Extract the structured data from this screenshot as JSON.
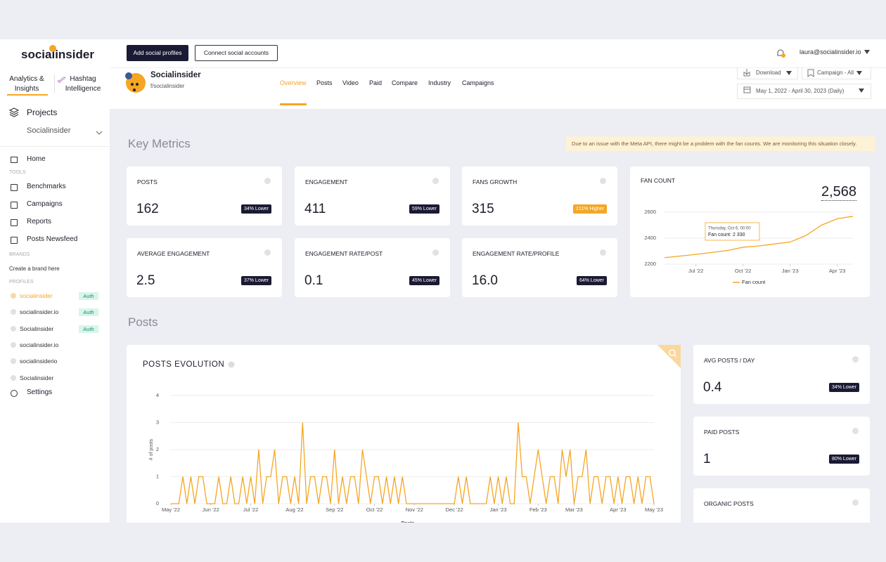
{
  "sidebar": {
    "logo": "socialinsider",
    "tabs": [
      "Analytics & Insights",
      "Hashtag Intelligence"
    ],
    "beta": "Beta",
    "projects": "Projects",
    "project": "Socialinsider",
    "home": "Home",
    "tools_label": "TOOLS",
    "tools": [
      "Benchmarks",
      "Campaigns",
      "Reports",
      "Posts Newsfeed"
    ],
    "brands_label": "BRANDS",
    "create_brand": "Create a brand here",
    "profiles_label": "PROFILES",
    "profiles": [
      {
        "name": "socialinsider",
        "auth": "Auth"
      },
      {
        "name": "socialinsider.io",
        "auth": "Auth"
      },
      {
        "name": "Socialinsider",
        "auth": "Auth"
      },
      {
        "name": "socialinsider.io"
      },
      {
        "name": "socialinsiderio"
      },
      {
        "name": "Socialinsider"
      }
    ],
    "settings": "Settings"
  },
  "topbar": {
    "buttons": [
      "Add social profiles",
      "Connect social accounts"
    ],
    "user": "laura@socialinsider.io"
  },
  "profile": {
    "name": "Socialinsider",
    "handle": "f/socialinsider",
    "tabs": [
      "Overview",
      "Posts",
      "Video",
      "Paid",
      "Compare",
      "Industry",
      "Campaigns"
    ],
    "download": "Download",
    "campaign": "Campaign - All",
    "date_range": "May 1, 2022 - April 30, 2023 (Daily)"
  },
  "key_metrics": {
    "title": "Key Metrics",
    "notice": "Due to an issue with the Meta API, there might be a problem with the fan counts. We are monitoring this situation closely.",
    "cards": [
      {
        "label": "POSTS",
        "value": "162",
        "badge": "34% Lower",
        "badge_color": "#1b1a34"
      },
      {
        "label": "ENGAGEMENT",
        "value": "411",
        "badge": "59% Lower",
        "badge_color": "#1b1a34"
      },
      {
        "label": "FANS GROWTH",
        "value": "315",
        "badge": "211% Higher",
        "badge_color": "#f5a623"
      },
      {
        "label": "AVERAGE ENGAGEMENT",
        "value": "2.5",
        "badge": "37% Lower",
        "badge_color": "#1b1a34"
      },
      {
        "label": "ENGAGEMENT RATE/POST",
        "value": "0.1",
        "badge": "45% Lower",
        "badge_color": "#1b1a34"
      },
      {
        "label": "ENGAGEMENT RATE/PROFILE",
        "value": "16.0",
        "badge": "64% Lower",
        "badge_color": "#1b1a34"
      }
    ]
  },
  "posts_section": {
    "title": "Posts",
    "cards": [
      {
        "label": "AVG POSTS / DAY",
        "value": "0.4",
        "badge": "34% Lower"
      },
      {
        "label": "PAID POSTS",
        "value": "1",
        "badge": "80% Lower"
      },
      {
        "label": "ORGANIC POSTS"
      }
    ]
  },
  "chart_data": [
    {
      "type": "line",
      "title": "FAN COUNT",
      "headline": "2,568",
      "tooltip": {
        "title": "Thursday, Oct 6, 00:00",
        "text": "Fan count: 2 330"
      },
      "series": [
        {
          "name": "Fan count",
          "color": "#f5a623",
          "values": [
            2250,
            2262,
            2275,
            2290,
            2305,
            2330,
            2340,
            2355,
            2370,
            2420,
            2500,
            2550,
            2568
          ]
        }
      ],
      "xlim": [
        0,
        12
      ],
      "xticks": [
        {
          "value": 2,
          "label": "Jul '22"
        },
        {
          "value": 5,
          "label": "Oct '22"
        },
        {
          "value": 8,
          "label": "Jan '23"
        },
        {
          "value": 11,
          "label": "Apr '23"
        }
      ],
      "ylim": [
        2200,
        2650
      ],
      "yticks": [
        2200,
        2400,
        2600
      ],
      "grid": true
    },
    {
      "type": "line",
      "title": "POSTS EVOLUTION",
      "y_label": "# of posts",
      "x_label": "Posts",
      "series": [
        {
          "name": "Posts",
          "color": "#f5a623",
          "values": [
            0,
            0,
            0,
            1,
            0,
            1,
            0,
            1,
            1,
            0,
            0,
            0,
            1,
            0,
            0,
            1,
            0,
            0,
            1,
            0,
            1,
            0,
            2,
            0,
            1,
            1,
            2,
            0,
            1,
            1,
            0,
            1,
            0,
            3,
            0,
            1,
            1,
            0,
            1,
            1,
            0,
            2,
            0,
            1,
            0,
            1,
            1,
            0,
            2,
            1,
            0,
            1,
            1,
            0,
            1,
            0,
            1,
            0,
            1,
            0,
            0,
            0,
            0,
            0,
            0,
            0,
            0,
            0,
            0,
            0,
            0,
            0,
            1,
            0,
            1,
            0,
            0,
            0,
            0,
            0,
            1,
            0,
            1,
            0,
            1,
            0,
            0,
            3,
            1,
            1,
            0,
            1,
            2,
            1,
            0,
            1,
            1,
            0,
            2,
            1,
            2,
            0,
            1,
            1,
            2,
            0,
            1,
            1,
            0,
            1,
            1,
            0,
            1,
            0,
            1,
            1,
            0,
            1,
            0,
            1,
            1,
            0
          ]
        }
      ],
      "xlim": [
        0,
        121
      ],
      "xticks": [
        {
          "value": 0,
          "label": "May '22"
        },
        {
          "value": 10,
          "label": "Jun '22"
        },
        {
          "value": 20,
          "label": "Jul '22"
        },
        {
          "value": 31,
          "label": "Aug '22"
        },
        {
          "value": 41,
          "label": "Sep '22"
        },
        {
          "value": 51,
          "label": "Oct '22"
        },
        {
          "value": 61,
          "label": "Nov '22"
        },
        {
          "value": 71,
          "label": "Dec '22"
        },
        {
          "value": 82,
          "label": "Jan '23"
        },
        {
          "value": 92,
          "label": "Feb '23"
        },
        {
          "value": 101,
          "label": "Mar '23"
        },
        {
          "value": 112,
          "label": "Apr '23"
        },
        {
          "value": 121,
          "label": "May '23"
        }
      ],
      "ylim": [
        0,
        4
      ],
      "yticks": [
        0,
        1,
        2,
        3,
        4
      ],
      "grid": true
    }
  ]
}
